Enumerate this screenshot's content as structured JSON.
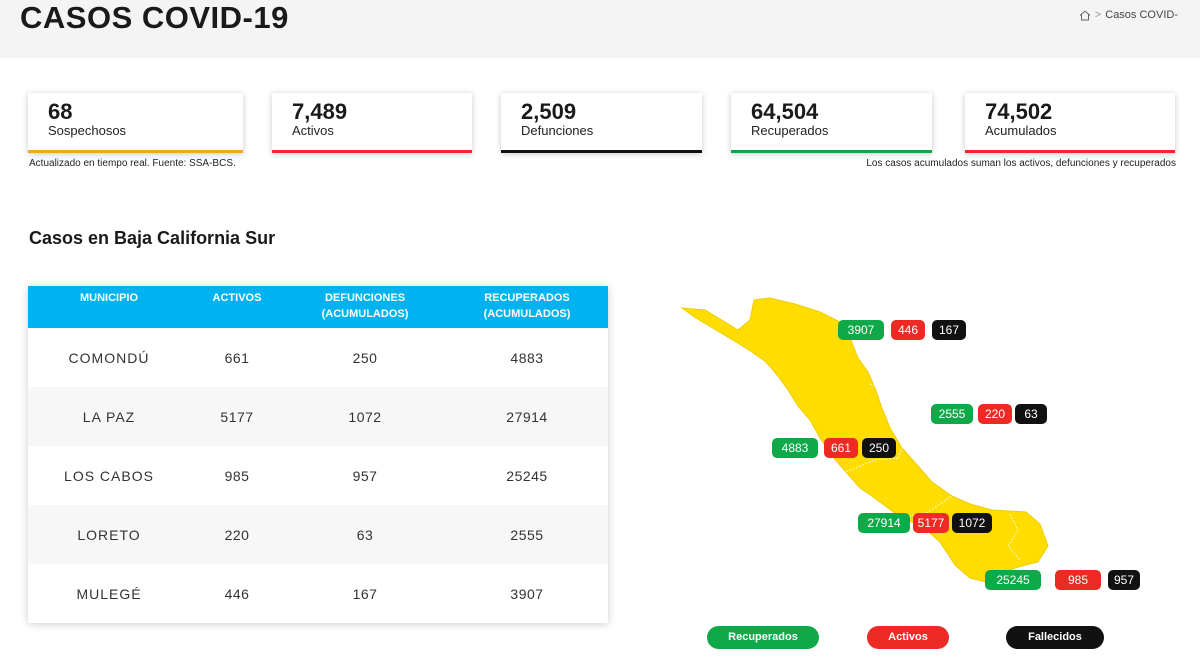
{
  "header": {
    "title": "CASOS COVID-19",
    "breadcrumb": {
      "current": "Casos COVID-",
      "home_icon": "home-icon"
    }
  },
  "stats": [
    {
      "value": "68",
      "label": "Sospechosos",
      "color": "#f5a623"
    },
    {
      "value": "7,489",
      "label": "Activos",
      "color": "#ee2a24"
    },
    {
      "value": "2,509",
      "label": "Defunciones",
      "color": "#111111"
    },
    {
      "value": "64,504",
      "label": "Recuperados",
      "color": "#0fa94a"
    },
    {
      "value": "74,502",
      "label": "Acumulados",
      "color": "#ee2a24"
    }
  ],
  "notes": {
    "left": "Actualizado en tiempo real. Fuente: SSA-BCS.",
    "right": "Los casos acumulados suman los activos, defunciones y recuperados"
  },
  "section_title": "Casos en Baja California Sur",
  "table": {
    "headers": {
      "municipio": "MUNICIPIO",
      "activos": "ACTIVOS",
      "defunciones_1": "DEFUNCIONES",
      "defunciones_2": "(ACUMULADOS)",
      "recuperados_1": "RECUPERADOS",
      "recuperados_2": "(ACUMULADOS)"
    },
    "rows": [
      {
        "municipio": "COMONDÚ",
        "activos": "661",
        "defunciones": "250",
        "recuperados": "4883"
      },
      {
        "municipio": "LA PAZ",
        "activos": "5177",
        "defunciones": "1072",
        "recuperados": "27914"
      },
      {
        "municipio": "LOS CABOS",
        "activos": "985",
        "defunciones": "957",
        "recuperados": "25245"
      },
      {
        "municipio": "LORETO",
        "activos": "220",
        "defunciones": "63",
        "recuperados": "2555"
      },
      {
        "municipio": "MULEGÉ",
        "activos": "446",
        "defunciones": "167",
        "recuperados": "3907"
      }
    ]
  },
  "map": {
    "fill_color": "#ffdd00",
    "markers": [
      {
        "recuperados": "3907",
        "activos": "446",
        "fallecidos": "167"
      },
      {
        "recuperados": "2555",
        "activos": "220",
        "fallecidos": "63"
      },
      {
        "recuperados": "4883",
        "activos": "661",
        "fallecidos": "250"
      },
      {
        "recuperados": "27914",
        "activos": "5177",
        "fallecidos": "1072"
      },
      {
        "recuperados": "25245",
        "activos": "985",
        "fallecidos": "957"
      }
    ]
  },
  "legend": {
    "recuperados": "Recuperados",
    "activos": "Activos",
    "fallecidos": "Fallecidos"
  }
}
